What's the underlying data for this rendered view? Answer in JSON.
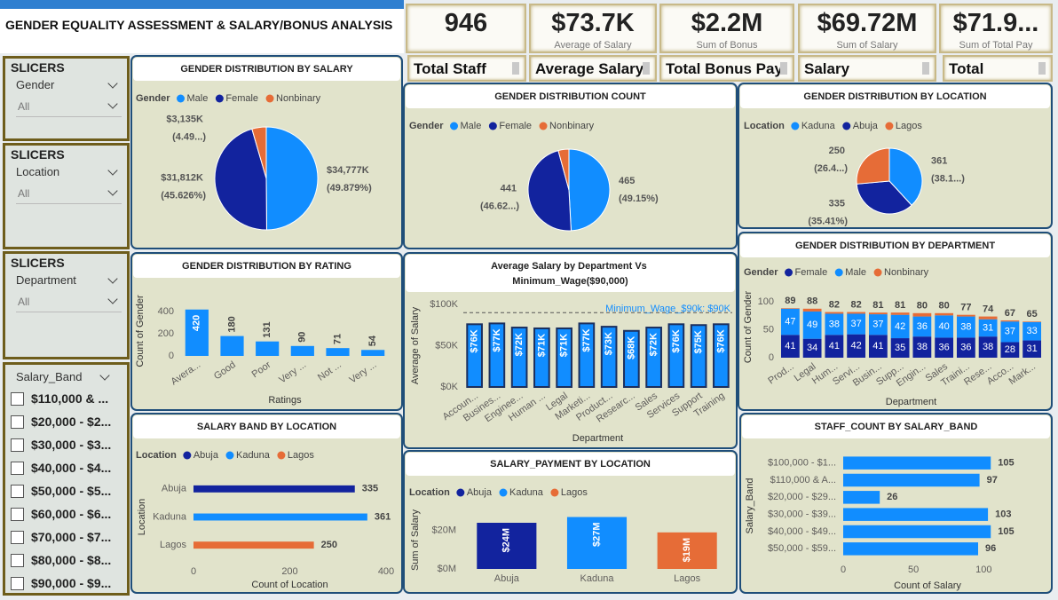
{
  "title": "GENDER EQUALITY ASSESSMENT & SALARY/BONUS ANALYSIS",
  "cards": [
    {
      "value": "946",
      "label": "Total Staff"
    },
    {
      "value": "$73.7K",
      "caption": "Average of Salary",
      "label": "Average Salary"
    },
    {
      "value": "$2.2M",
      "caption": "Sum of Bonus",
      "label": "Total Bonus Pay"
    },
    {
      "value": "$69.72M",
      "caption": "Sum of Salary",
      "label": "Salary"
    },
    {
      "value": "$71.9...",
      "caption": "Sum of Total Pay",
      "label": "Total"
    }
  ],
  "slicers": [
    {
      "heading": "SLICERS",
      "field": "Gender",
      "value": "All"
    },
    {
      "heading": "SLICERS",
      "field": "Location",
      "value": "All"
    },
    {
      "heading": "SLICERS",
      "field": "Department",
      "value": "All"
    }
  ],
  "salary_band_slicer": {
    "field": "Salary_Band",
    "items": [
      "$110,000 & ...",
      "$20,000 - $2...",
      "$30,000 - $3...",
      "$40,000 - $4...",
      "$50,000 - $5...",
      "$60,000 - $6...",
      "$70,000 - $7...",
      "$80,000 - $8...",
      "$90,000 - $9..."
    ]
  },
  "chart_data": [
    {
      "type": "pie",
      "title": "GENDER DISTRIBUTION BY SALARY",
      "legend_title": "Gender",
      "categories": [
        "Male",
        "Female",
        "Nonbinary"
      ],
      "colors": [
        "#118DFF",
        "#12239E",
        "#E66C37"
      ],
      "values": [
        34777,
        31812,
        3135
      ],
      "value_labels": [
        "$34,777K (49.879%)",
        "$31,812K (45.626%)",
        "$3,135K (4.49...)"
      ]
    },
    {
      "type": "pie",
      "title": "GENDER DISTRIBUTION COUNT",
      "legend_title": "Gender",
      "categories": [
        "Male",
        "Female",
        "Nonbinary"
      ],
      "colors": [
        "#118DFF",
        "#12239E",
        "#E66C37"
      ],
      "values": [
        465,
        441,
        40
      ],
      "value_labels": [
        "465 (49.15%)",
        "441 (46.62...)",
        null
      ]
    },
    {
      "type": "pie",
      "title": "GENDER DISTRIBUTION BY LOCATION",
      "legend_title": "Location",
      "categories": [
        "Kaduna",
        "Abuja",
        "Lagos"
      ],
      "colors": [
        "#118DFF",
        "#12239E",
        "#E66C37"
      ],
      "values": [
        361,
        335,
        250
      ],
      "value_labels": [
        "361 (38.1...)",
        "335 (35.41%)",
        "250 (26.4...)"
      ]
    },
    {
      "type": "bar",
      "title": "GENDER DISTRIBUTION BY RATING",
      "xlabel": "Ratings",
      "ylabel": "Count of Gender",
      "categories": [
        "Avera...",
        "Good",
        "Poor",
        "Very ...",
        "Not ...",
        "Very ..."
      ],
      "values": [
        420,
        180,
        131,
        90,
        71,
        54
      ],
      "color": "#118DFF",
      "ylim": [
        0,
        450
      ],
      "yticks": [
        0,
        200,
        400
      ]
    },
    {
      "type": "bar",
      "title": "Average Salary by Department Vs Minimum_Wage($90,000)",
      "xlabel": "Department",
      "ylabel": "Average of Salary",
      "categories": [
        "Accoun...",
        "Busines...",
        "Enginee...",
        "Human ...",
        "Legal",
        "Marketi...",
        "Product...",
        "Researc...",
        "Sales",
        "Services",
        "Support",
        "Training"
      ],
      "values": [
        76000,
        77000,
        72000,
        71000,
        71000,
        77000,
        73000,
        68000,
        72000,
        76000,
        75000,
        76000
      ],
      "value_labels": [
        "$76K",
        "$77K",
        "$72K",
        "$71K",
        "$71K",
        "$77K",
        "$73K",
        "$68K",
        "$72K",
        "$76K",
        "$75K",
        "$76K"
      ],
      "color": "#118DFF",
      "border_color": "#1b2f5e",
      "ylim": [
        0,
        100000
      ],
      "yticks": [
        {
          "value": 0,
          "label": "$0K"
        },
        {
          "value": 50000,
          "label": "$50K"
        },
        {
          "value": 100000,
          "label": "$100K"
        }
      ],
      "reference_line": {
        "value": 90000,
        "label": "Minimum_Wage_$90k: $90K"
      }
    },
    {
      "type": "stacked_bar",
      "title": "GENDER DISTRIBUTION BY DEPARTMENT",
      "legend_title": "Gender",
      "xlabel": "Department",
      "ylabel": "Count of Gender",
      "categories": [
        "Prod...",
        "Legal",
        "Hum...",
        "Servi...",
        "Busin...",
        "Supp...",
        "Engin...",
        "Sales",
        "Traini...",
        "Rese...",
        "Acco...",
        "Mark..."
      ],
      "series": [
        {
          "name": "Female",
          "color": "#12239E",
          "values": [
            41,
            34,
            41,
            42,
            41,
            35,
            38,
            36,
            36,
            38,
            28,
            31
          ]
        },
        {
          "name": "Male",
          "color": "#118DFF",
          "values": [
            47,
            49,
            38,
            37,
            37,
            42,
            36,
            40,
            38,
            31,
            37,
            33
          ]
        },
        {
          "name": "Nonbinary",
          "color": "#E66C37",
          "values": [
            1,
            5,
            3,
            3,
            3,
            4,
            6,
            4,
            3,
            5,
            2,
            1
          ]
        }
      ],
      "total_labels": [
        89,
        88,
        82,
        82,
        81,
        81,
        80,
        80,
        77,
        74,
        67,
        65
      ],
      "ylim": [
        0,
        110
      ],
      "yticks": [
        0,
        50,
        100
      ]
    },
    {
      "type": "hbar",
      "title": "SALARY BAND BY LOCATION",
      "legend_title": "Location",
      "xlabel": "Count of Location",
      "ylabel": "Location",
      "categories": [
        "Abuja",
        "Kaduna",
        "Lagos"
      ],
      "values": [
        335,
        361,
        250
      ],
      "colors": [
        "#12239E",
        "#118DFF",
        "#E66C37"
      ],
      "xlim": [
        0,
        400
      ],
      "xticks": [
        0,
        200,
        400
      ]
    },
    {
      "type": "bar",
      "title": "SALARY_PAYMENT BY LOCATION",
      "legend_title": "Location",
      "ylabel": "Sum of Salary",
      "categories": [
        "Abuja",
        "Kaduna",
        "Lagos"
      ],
      "values": [
        24000000,
        27000000,
        19000000
      ],
      "value_labels": [
        "$24M",
        "$27M",
        "$19M"
      ],
      "colors": [
        "#12239E",
        "#118DFF",
        "#E66C37"
      ],
      "ylim": [
        0,
        30000000
      ],
      "yticks": [
        {
          "value": 0,
          "label": "$0M"
        },
        {
          "value": 20000000,
          "label": "$20M"
        }
      ]
    },
    {
      "type": "hbar",
      "title": "STAFF_COUNT BY SALARY_BAND",
      "xlabel": "Count of Salary",
      "ylabel": "Salary_Band",
      "categories": [
        "$100,000 - $1...",
        "$110,000 & A...",
        "$20,000 - $29...",
        "$30,000 - $39...",
        "$40,000 - $49...",
        "$50,000 - $59..."
      ],
      "values": [
        105,
        97,
        26,
        103,
        105,
        96
      ],
      "color": "#118DFF",
      "xlim": [
        0,
        120
      ],
      "xticks": [
        0,
        50,
        100
      ]
    }
  ]
}
